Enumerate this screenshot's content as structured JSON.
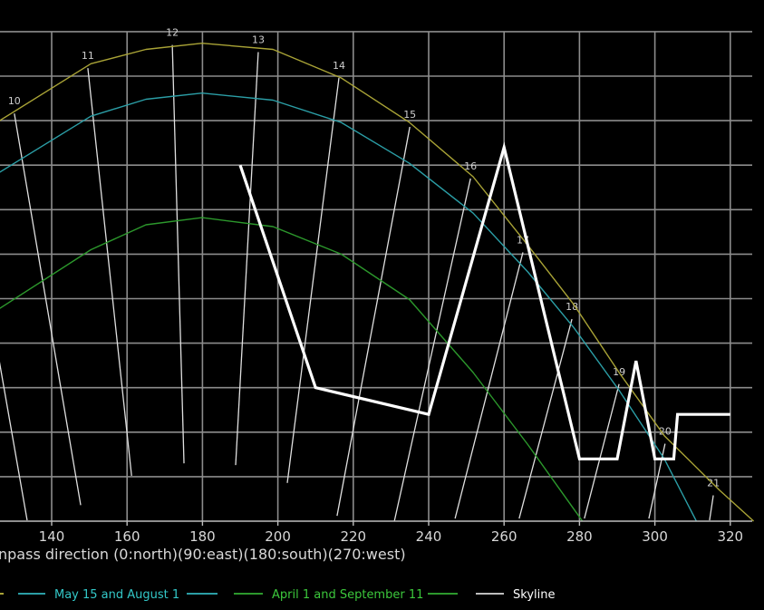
{
  "chart_data": {
    "type": "line",
    "xlabel": "npass direction (0:north)(90:east)(180:south)(270:west)",
    "ylabel": "",
    "xlim": [
      126.3,
      326
    ],
    "ylim": [
      0,
      55
    ],
    "grid": true,
    "x_ticks": [
      140,
      160,
      180,
      200,
      220,
      240,
      260,
      280,
      300,
      320
    ],
    "y_grid_step": 5,
    "legend_placement": "bottom",
    "series": [
      {
        "name": "",
        "color": "#a9a336",
        "points": [
          [
            126.2,
            45.0
          ],
          [
            150.4,
            51.4
          ],
          [
            165,
            53.0
          ],
          [
            179.9,
            53.7
          ],
          [
            198.7,
            53.0
          ],
          [
            216.8,
            49.8
          ],
          [
            234.9,
            44.8
          ],
          [
            251.8,
            38.7
          ],
          [
            266.3,
            31.0
          ],
          [
            278.4,
            24.4
          ],
          [
            290.5,
            16.7
          ],
          [
            302.5,
            9.6
          ],
          [
            317.1,
            3.5
          ],
          [
            326.2,
            0
          ]
        ]
      },
      {
        "name": "May 15 and August 1",
        "color": "#2b9ea6",
        "text_color": "#33c8c8",
        "points": [
          [
            126.2,
            39.2
          ],
          [
            150.4,
            45.5
          ],
          [
            165,
            47.4
          ],
          [
            179.9,
            48.1
          ],
          [
            198.7,
            47.3
          ],
          [
            216.8,
            44.8
          ],
          [
            234.9,
            40.2
          ],
          [
            251.8,
            34.6
          ],
          [
            266.3,
            28.0
          ],
          [
            278.4,
            21.8
          ],
          [
            290.5,
            14.7
          ],
          [
            302.5,
            7.0
          ],
          [
            311,
            0
          ]
        ]
      },
      {
        "name": "April 1 and September 11",
        "color": "#2c982c",
        "text_color": "#3cc83c",
        "points": [
          [
            126.2,
            23.9
          ],
          [
            150.4,
            30.5
          ],
          [
            165,
            33.3
          ],
          [
            179.9,
            34.1
          ],
          [
            198.7,
            33.1
          ],
          [
            216.8,
            30.0
          ],
          [
            234.9,
            24.9
          ],
          [
            251.8,
            16.7
          ],
          [
            266.3,
            8.6
          ],
          [
            280.8,
            0
          ]
        ]
      },
      {
        "name": "Skyline",
        "color": "#ffffff",
        "legend_color": "#bdbdbd",
        "text_color": "#ffffff",
        "points": [
          [
            190,
            40
          ],
          [
            210,
            15
          ],
          [
            240,
            12
          ],
          [
            260,
            42
          ],
          [
            280,
            7
          ],
          [
            290,
            7
          ],
          [
            295,
            18
          ],
          [
            300,
            7
          ],
          [
            305,
            7
          ],
          [
            306,
            12
          ],
          [
            320,
            12
          ]
        ]
      }
    ],
    "hour_lines": [
      {
        "hour": "",
        "top": [
          122.8,
          26.0
        ],
        "bottom": [
          133.5,
          0.1
        ]
      },
      {
        "hour": "10",
        "top": [
          130.1,
          45.8
        ],
        "bottom": [
          147.7,
          1.8
        ]
      },
      {
        "hour": "11",
        "top": [
          149.6,
          50.9
        ],
        "bottom": [
          161.2,
          5.1
        ]
      },
      {
        "hour": "12",
        "top": [
          172.0,
          53.5
        ],
        "bottom": [
          175.1,
          6.5
        ]
      },
      {
        "hour": "13",
        "top": [
          194.8,
          52.7
        ],
        "bottom": [
          188.8,
          6.3
        ]
      },
      {
        "hour": "14",
        "top": [
          216.2,
          49.8
        ],
        "bottom": [
          202.5,
          4.3
        ]
      },
      {
        "hour": "15",
        "top": [
          235.0,
          44.3
        ],
        "bottom": [
          215.7,
          0.6
        ]
      },
      {
        "hour": "16",
        "top": [
          251.1,
          38.5
        ],
        "bottom": [
          230.9,
          0.0
        ]
      },
      {
        "hour": "17",
        "top": [
          265.0,
          30.2
        ],
        "bottom": [
          247.0,
          0.3
        ]
      },
      {
        "hour": "18",
        "top": [
          278.0,
          22.7
        ],
        "bottom": [
          264.0,
          0.3
        ]
      },
      {
        "hour": "19",
        "top": [
          290.5,
          15.4
        ],
        "bottom": [
          281.3,
          0.3
        ]
      },
      {
        "hour": "20",
        "top": [
          302.7,
          8.7
        ],
        "bottom": [
          298.4,
          0.3
        ]
      },
      {
        "hour": "21",
        "top": [
          315.5,
          2.9
        ],
        "bottom": [
          314.5,
          0.1
        ]
      }
    ]
  }
}
